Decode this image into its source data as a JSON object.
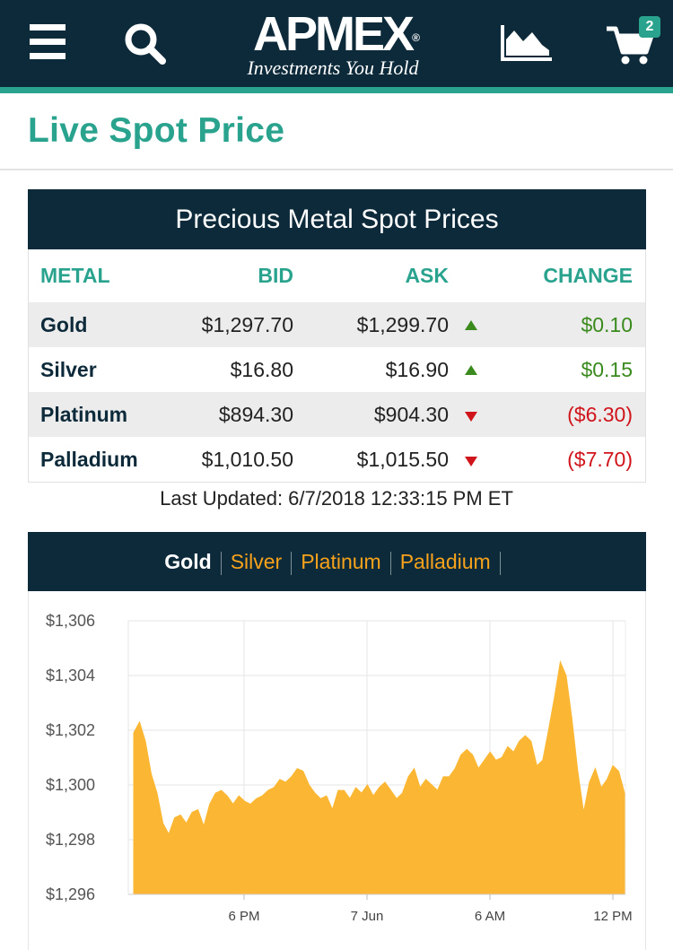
{
  "header": {
    "logo_word": "APMEX",
    "logo_registered": "®",
    "logo_tagline": "Investments You Hold",
    "cart_count": "2"
  },
  "page_title": "Live Spot Price",
  "spot": {
    "title": "Precious Metal Spot Prices",
    "columns": [
      "METAL",
      "BID",
      "ASK",
      "CHANGE"
    ],
    "rows": [
      {
        "metal": "Gold",
        "bid": "$1,297.70",
        "ask": "$1,299.70",
        "direction": "up",
        "change": "$0.10"
      },
      {
        "metal": "Silver",
        "bid": "$16.80",
        "ask": "$16.90",
        "direction": "up",
        "change": "$0.15"
      },
      {
        "metal": "Platinum",
        "bid": "$894.30",
        "ask": "$904.30",
        "direction": "down",
        "change": "($6.30)"
      },
      {
        "metal": "Palladium",
        "bid": "$1,010.50",
        "ask": "$1,015.50",
        "direction": "down",
        "change": "($7.70)"
      }
    ],
    "last_updated": "Last Updated: 6/7/2018 12:33:15 PM ET"
  },
  "chart_tabs": {
    "items": [
      "Gold",
      "Silver",
      "Platinum",
      "Palladium"
    ],
    "active": "Gold"
  },
  "colors": {
    "navy": "#0d2a3a",
    "teal": "#2aa38e",
    "gold_fill": "#fbb733",
    "up": "#3a8a1e",
    "down": "#d0141b"
  },
  "chart_data": {
    "type": "area",
    "title": "",
    "xlabel": "",
    "ylabel": "",
    "x_ticks": [
      "6 PM",
      "7 Jun",
      "6 AM",
      "12 PM"
    ],
    "y_ticks": [
      "$1,306",
      "$1,304",
      "$1,302",
      "$1,300",
      "$1,298",
      "$1,296"
    ],
    "ylim": [
      1296,
      1306
    ],
    "grid": true,
    "series": [
      {
        "values": [
          1301.9,
          1302.3,
          1301.6,
          1300.4,
          1299.7,
          1298.6,
          1298.2,
          1298.8,
          1298.9,
          1298.6,
          1299.0,
          1299.1,
          1298.5,
          1299.3,
          1299.7,
          1299.8,
          1299.6,
          1299.3,
          1299.6,
          1299.4,
          1299.3,
          1299.5,
          1299.6,
          1299.8,
          1299.9,
          1300.2,
          1300.1,
          1300.3,
          1300.6,
          1300.5,
          1300.0,
          1299.7,
          1299.5,
          1299.6,
          1299.1,
          1299.8,
          1299.8,
          1299.5,
          1299.9,
          1299.7,
          1300.0,
          1299.6,
          1299.9,
          1300.1,
          1299.8,
          1299.5,
          1299.7,
          1300.3,
          1300.6,
          1299.9,
          1300.2,
          1300.0,
          1299.8,
          1300.3,
          1300.3,
          1300.6,
          1301.1,
          1301.3,
          1301.1,
          1300.6,
          1300.9,
          1301.2,
          1300.9,
          1301.0,
          1301.4,
          1301.2,
          1301.6,
          1301.8,
          1301.6,
          1300.7,
          1300.9,
          1302.0,
          1303.2,
          1304.5,
          1304.0,
          1302.4,
          1300.5,
          1299.0,
          1300.1,
          1300.6,
          1299.9,
          1300.2,
          1300.7,
          1300.5,
          1299.7
        ]
      }
    ]
  }
}
